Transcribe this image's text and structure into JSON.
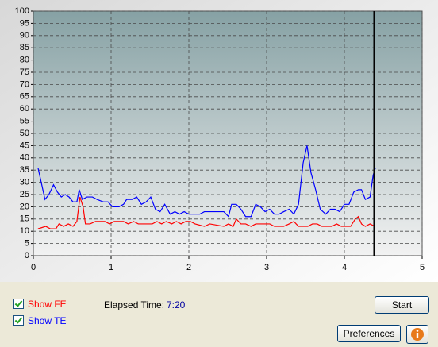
{
  "chart_data": {
    "type": "line",
    "xlim": [
      0,
      5
    ],
    "xticks": [
      0,
      1,
      2,
      3,
      4,
      5
    ],
    "ylim": [
      0,
      100
    ],
    "yticks": [
      0,
      5,
      10,
      15,
      20,
      25,
      30,
      35,
      40,
      45,
      50,
      55,
      60,
      65,
      70,
      75,
      80,
      85,
      90,
      95,
      100
    ],
    "grid": true,
    "cursor_x": 4.38,
    "series": [
      {
        "name": "TE",
        "color": "#0000ff",
        "x": [
          0.06,
          0.15,
          0.2,
          0.26,
          0.31,
          0.36,
          0.41,
          0.46,
          0.51,
          0.56,
          0.59,
          0.63,
          0.69,
          0.76,
          0.82,
          0.9,
          0.96,
          1.02,
          1.1,
          1.16,
          1.2,
          1.27,
          1.33,
          1.39,
          1.45,
          1.51,
          1.57,
          1.63,
          1.69,
          1.76,
          1.82,
          1.88,
          1.94,
          2.0,
          2.08,
          2.14,
          2.2,
          2.29,
          2.37,
          2.45,
          2.51,
          2.55,
          2.61,
          2.67,
          2.73,
          2.8,
          2.86,
          2.92,
          2.98,
          3.04,
          3.1,
          3.16,
          3.22,
          3.29,
          3.35,
          3.41,
          3.47,
          3.52,
          3.57,
          3.63,
          3.69,
          3.76,
          3.82,
          3.88,
          3.94,
          4.0,
          4.06,
          4.12,
          4.18,
          4.22,
          4.27,
          4.33,
          4.37,
          4.4
        ],
        "values": [
          36,
          23,
          25,
          29,
          26,
          24,
          25,
          24,
          22,
          22,
          27,
          23,
          24,
          24,
          23,
          22,
          22,
          20,
          20,
          21,
          23,
          23,
          24,
          21,
          22,
          24,
          19,
          18,
          21,
          17,
          18,
          17,
          18,
          17,
          17,
          17,
          18,
          18,
          18,
          18,
          16,
          21,
          21,
          19,
          16,
          16,
          21,
          20,
          18,
          19,
          17,
          17,
          18,
          19,
          17,
          21,
          38,
          45,
          34,
          27,
          19,
          17,
          19,
          19,
          18,
          21,
          21,
          26,
          27,
          27,
          23,
          24,
          33,
          36
        ]
      },
      {
        "name": "FE",
        "color": "#ff0000",
        "x": [
          0.06,
          0.16,
          0.22,
          0.29,
          0.33,
          0.39,
          0.45,
          0.51,
          0.56,
          0.6,
          0.64,
          0.67,
          0.73,
          0.8,
          0.92,
          0.98,
          1.04,
          1.16,
          1.22,
          1.29,
          1.35,
          1.53,
          1.59,
          1.65,
          1.71,
          1.78,
          1.84,
          1.9,
          1.96,
          2.02,
          2.08,
          2.2,
          2.27,
          2.45,
          2.51,
          2.57,
          2.61,
          2.67,
          2.73,
          2.8,
          2.86,
          3.04,
          3.1,
          3.22,
          3.29,
          3.35,
          3.41,
          3.53,
          3.59,
          3.65,
          3.71,
          3.84,
          3.9,
          3.96,
          4.08,
          4.14,
          4.18,
          4.22,
          4.27,
          4.33,
          4.39
        ],
        "values": [
          11,
          12,
          11,
          11,
          13,
          12,
          13,
          12,
          14,
          24,
          20,
          13,
          13,
          14,
          14,
          13,
          14,
          14,
          13,
          14,
          13,
          13,
          14,
          13,
          14,
          13,
          14,
          13,
          14,
          14,
          13,
          12,
          13,
          12,
          13,
          12,
          15,
          13,
          13,
          12,
          13,
          13,
          12,
          12,
          13,
          14,
          12,
          12,
          13,
          13,
          12,
          12,
          13,
          12,
          12,
          15,
          16,
          13,
          12,
          13,
          12
        ]
      }
    ]
  },
  "controls": {
    "show_fe": "Show FE",
    "show_te": "Show TE",
    "elapsed_label": "Elapsed Time:",
    "elapsed_value": "7:20",
    "start": "Start",
    "preferences": "Preferences"
  }
}
